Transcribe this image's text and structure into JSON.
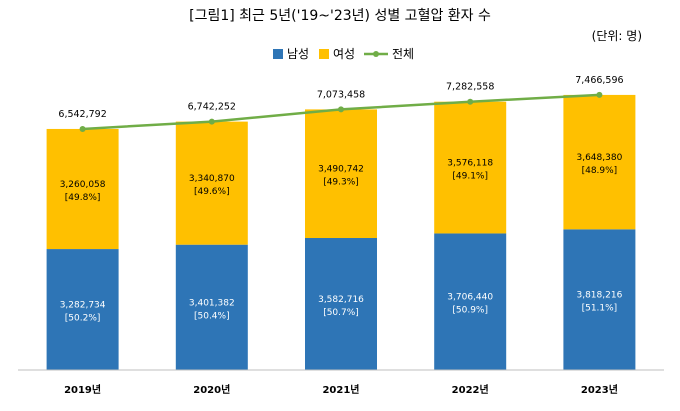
{
  "chart_data": {
    "type": "bar",
    "title": "[그림1] 최근 5년('19~'23년) 성별 고혈압 환자 수",
    "unit_note": "(단위: 명)",
    "categories": [
      "2019년",
      "2020년",
      "2021년",
      "2022년",
      "2023년"
    ],
    "series": [
      {
        "name": "남성",
        "type": "bar",
        "stacked": true,
        "color": "#2E75B6",
        "values": [
          3282734,
          3401382,
          3582716,
          3706440,
          3818216
        ],
        "value_labels": [
          "3,282,734",
          "3,401,382",
          "3,582,716",
          "3,706,440",
          "3,818,216"
        ],
        "pct_labels": [
          "[50.2%]",
          "[50.4%]",
          "[50.7%]",
          "[50.9%]",
          "[51.1%]"
        ]
      },
      {
        "name": "여성",
        "type": "bar",
        "stacked": true,
        "color": "#FFC000",
        "values": [
          3260058,
          3340870,
          3490742,
          3576118,
          3648380
        ],
        "value_labels": [
          "3,260,058",
          "3,340,870",
          "3,490,742",
          "3,576,118",
          "3,648,380"
        ],
        "pct_labels": [
          "[49.8%]",
          "[49.6%]",
          "[49.3%]",
          "[49.1%]",
          "[48.9%]"
        ]
      },
      {
        "name": "전체",
        "type": "line",
        "color": "#70AD47",
        "values": [
          6542792,
          6742252,
          7073458,
          7282558,
          7466596
        ],
        "value_labels": [
          "6,542,792",
          "6,742,252",
          "7,073,458",
          "7,282,558",
          "7,466,596"
        ]
      }
    ],
    "legend_position": "top-center",
    "grid": false,
    "ylim": [
      0,
      7600000
    ]
  }
}
